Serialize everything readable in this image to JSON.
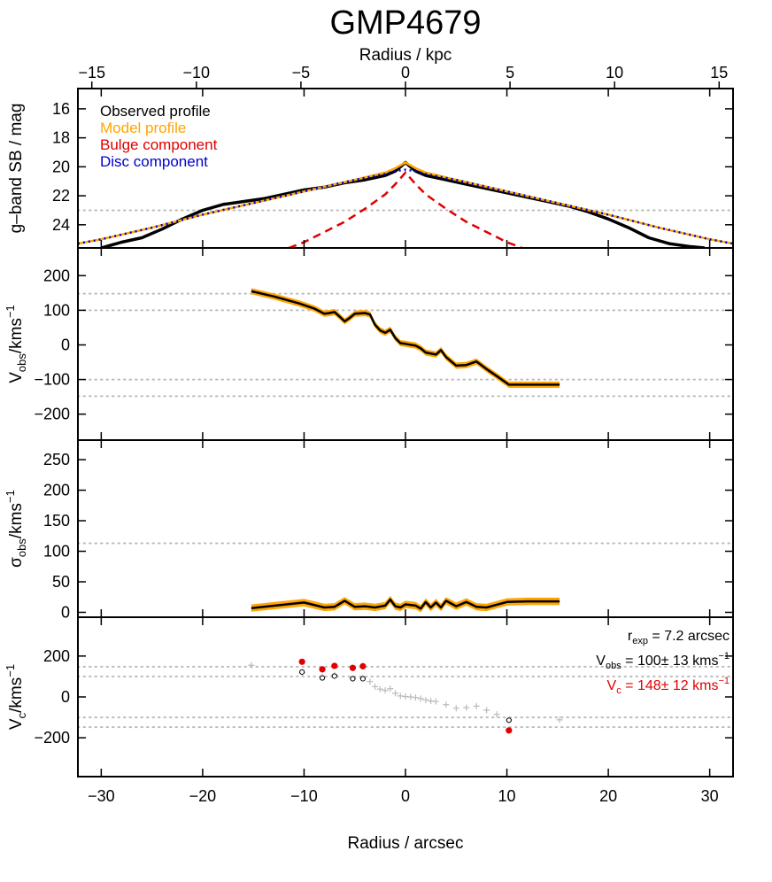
{
  "title": "GMP4679",
  "x_axis_bottom": {
    "label": "Radius / arcsec",
    "range": [
      -32.3,
      32.3
    ],
    "ticks": [
      -30,
      -20,
      -10,
      0,
      10,
      20,
      30
    ],
    "tick_labels": [
      "−30",
      "−20",
      "−10",
      "0",
      "10",
      "20",
      "30"
    ]
  },
  "x_axis_top": {
    "label": "Radius / kpc",
    "ticks": [
      -15,
      -10,
      -5,
      0,
      5,
      10,
      15
    ],
    "tick_labels": [
      "−15",
      "−10",
      "−5",
      "0",
      "5",
      "10",
      "15"
    ]
  },
  "colors": {
    "observed": "#000000",
    "model": "#FFA500",
    "bulge": "#E00000",
    "disc": "#0000CC",
    "reference": "#BBBBBB",
    "uncorrected": "#888888"
  },
  "chart_data": [
    {
      "type": "line",
      "panel": "surface-brightness",
      "ylabel": "g–band SB / mag",
      "ylim": [
        25.6,
        14.6
      ],
      "y_inverted": true,
      "yticks": [
        16,
        18,
        20,
        22,
        24
      ],
      "ytick_labels": [
        "16",
        "18",
        "20",
        "22",
        "24"
      ],
      "reference_lines": [
        23.0
      ],
      "legend": [
        "Observed profile",
        "Model profile",
        "Bulge component",
        "Disc component"
      ],
      "legend_placement": "top-left",
      "series": [
        {
          "name": "Observed profile",
          "x": [
            -30,
            -28,
            -26,
            -24,
            -22,
            -20,
            -18,
            -16,
            -14,
            -12,
            -10,
            -8,
            -6,
            -4,
            -2,
            -1,
            0,
            1,
            2,
            4,
            6,
            8,
            10,
            12,
            14,
            16,
            18,
            20,
            22,
            24,
            26,
            28,
            29.5
          ],
          "y": [
            25.6,
            25.2,
            24.9,
            24.3,
            23.6,
            23.0,
            22.6,
            22.4,
            22.2,
            21.9,
            21.6,
            21.4,
            21.1,
            20.9,
            20.6,
            20.3,
            19.7,
            20.3,
            20.6,
            20.9,
            21.2,
            21.5,
            21.8,
            22.1,
            22.4,
            22.7,
            23.1,
            23.6,
            24.2,
            24.9,
            25.3,
            25.5,
            25.6
          ]
        },
        {
          "name": "Model profile",
          "x": [
            -32.3,
            -30,
            -25,
            -20,
            -15,
            -10,
            -5,
            -2,
            -1,
            0,
            1,
            2,
            5,
            10,
            15,
            20,
            25,
            30,
            32.3
          ],
          "y": [
            25.3,
            25.0,
            24.2,
            23.3,
            22.5,
            21.7,
            20.9,
            20.4,
            20.1,
            19.7,
            20.1,
            20.4,
            20.9,
            21.7,
            22.5,
            23.3,
            24.2,
            25.0,
            25.3
          ]
        },
        {
          "name": "Bulge component",
          "x": [
            -11.5,
            -10,
            -8,
            -6,
            -4,
            -2,
            -1,
            0,
            1,
            2,
            4,
            6,
            8,
            10,
            11.5
          ],
          "y": [
            25.6,
            25.2,
            24.5,
            23.8,
            22.9,
            21.9,
            21.2,
            20.4,
            21.2,
            21.9,
            22.9,
            23.8,
            24.5,
            25.2,
            25.6
          ]
        },
        {
          "name": "Disc component",
          "x": [
            -32.3,
            -30,
            -25,
            -20,
            -15,
            -10,
            -5,
            -2,
            -1,
            0,
            1,
            2,
            5,
            10,
            15,
            20,
            25,
            30,
            32.3
          ],
          "y": [
            25.3,
            25.0,
            24.2,
            23.3,
            22.5,
            21.7,
            20.9,
            20.5,
            20.3,
            20.2,
            20.3,
            20.5,
            20.9,
            21.7,
            22.5,
            23.3,
            24.2,
            25.0,
            25.3
          ]
        }
      ]
    },
    {
      "type": "line",
      "panel": "velocity",
      "ylabel": "V",
      "ylabel_sub": "obs",
      "ylabel_unit": "/kms",
      "ylabel_sup": "−1",
      "ylim": [
        -275,
        280
      ],
      "yticks": [
        -200,
        -100,
        0,
        100,
        200
      ],
      "ytick_labels": [
        "−200",
        "−100",
        "0",
        "100",
        "200"
      ],
      "reference_lines": [
        148,
        100,
        -100,
        -148
      ],
      "series": [
        {
          "name": "",
          "x": [
            -15.2,
            -13,
            -10.5,
            -9,
            -8,
            -7.5,
            -7,
            -6.5,
            -6,
            -5.5,
            -5,
            -4,
            -3.5,
            -3,
            -2.5,
            -2,
            -1.5,
            -1,
            -0.5,
            0,
            1,
            1.5,
            2,
            3,
            3.5,
            4,
            5,
            6,
            7,
            8,
            9,
            10.2,
            12,
            15.2
          ],
          "y": [
            155,
            140,
            120,
            105,
            90,
            92,
            95,
            82,
            68,
            78,
            90,
            92,
            88,
            58,
            42,
            35,
            44,
            20,
            5,
            3,
            -2,
            -10,
            -22,
            -28,
            -15,
            -35,
            -60,
            -58,
            -48,
            -70,
            -90,
            -115,
            -115,
            -115
          ],
          "band": 9
        }
      ]
    },
    {
      "type": "line",
      "panel": "dispersion",
      "ylabel": "σ",
      "ylabel_sub": "obs",
      "ylabel_unit": "/kms",
      "ylabel_sup": "−1",
      "ylim": [
        -8,
        282
      ],
      "yticks": [
        0,
        50,
        100,
        150,
        200,
        250
      ],
      "ytick_labels": [
        "0",
        "50",
        "100",
        "150",
        "200",
        "250"
      ],
      "reference_lines": [
        113
      ],
      "series": [
        {
          "name": "",
          "x": [
            -15.2,
            -10,
            -8,
            -7,
            -6,
            -5,
            -4,
            -3,
            -2,
            -1.5,
            -1,
            -0.5,
            0,
            1,
            1.5,
            2,
            2.5,
            3,
            3.5,
            4,
            5,
            6,
            7,
            8,
            10,
            12,
            15.2
          ],
          "y": [
            7,
            16,
            8,
            9,
            19,
            9,
            10,
            8,
            11,
            21,
            10,
            8,
            13,
            11,
            6,
            17,
            8,
            16,
            8,
            19,
            10,
            17,
            9,
            8,
            17,
            18,
            18
          ],
          "band": 6
        }
      ]
    },
    {
      "type": "scatter",
      "panel": "circular-velocity",
      "ylabel": "V",
      "ylabel_sub": "c",
      "ylabel_unit": "/kms",
      "ylabel_sup": "−1",
      "ylim": [
        -390,
        390
      ],
      "yticks": [
        -200,
        0,
        200
      ],
      "ytick_labels": [
        "−200",
        "0",
        "200"
      ],
      "reference_lines": [
        148,
        100,
        -100,
        -148
      ],
      "series": [
        {
          "name": "",
          "marker": "plus",
          "x": [
            -15.2,
            -10.2,
            -8.2,
            -7,
            -5.2,
            -4.2,
            -3.5,
            -3,
            -2.5,
            -2,
            -1.5,
            -1,
            -0.5,
            0,
            0.5,
            1,
            1.5,
            2,
            2.5,
            3,
            4,
            5,
            6,
            7,
            8,
            9,
            10.2,
            15.2
          ],
          "y": [
            155,
            118,
            98,
            108,
            90,
            92,
            75,
            50,
            38,
            32,
            40,
            18,
            5,
            2,
            0,
            -3,
            -8,
            -15,
            -20,
            -22,
            -38,
            -55,
            -52,
            -45,
            -65,
            -85,
            -112,
            -112
          ]
        },
        {
          "name": "",
          "marker": "open-circle",
          "x": [
            -10.2,
            -8.2,
            -7,
            -5.2,
            -4.2,
            10.2
          ],
          "y": [
            122,
            93,
            102,
            89,
            89,
            -114
          ]
        },
        {
          "name": "",
          "marker": "filled-circle",
          "x": [
            -10.2,
            -8.2,
            -7,
            -5.2,
            -4.2,
            10.2
          ],
          "y": [
            172,
            135,
            152,
            142,
            150,
            -164
          ]
        }
      ],
      "annotations": [
        {
          "id": "rexp",
          "pre": "r",
          "sub": "exp",
          "post": " = 7.2 arcsec",
          "color": "#000000"
        },
        {
          "id": "vobs",
          "pre": "V",
          "sub": "obs",
          "post": " = 100± 13 kms",
          "sup": "−1",
          "color": "#000000"
        },
        {
          "id": "vc",
          "pre": "V",
          "sub": "c",
          "post": " = 148± 12 kms",
          "sup": "−1",
          "color": "#E00000"
        }
      ]
    }
  ]
}
